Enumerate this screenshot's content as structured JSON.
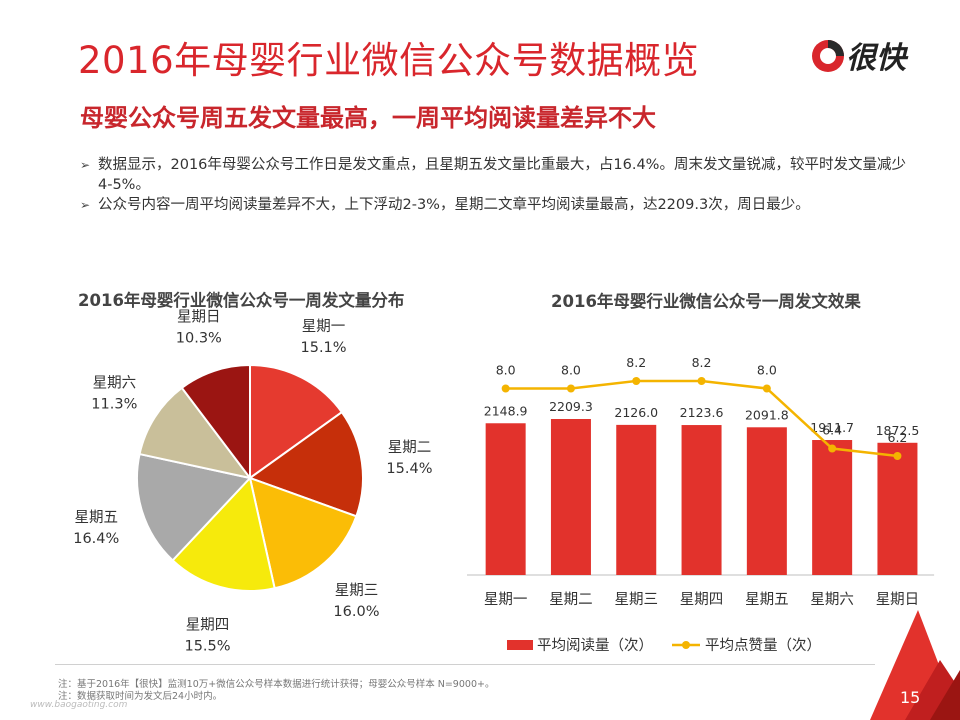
{
  "header": {
    "title": "2016年母婴行业微信公众号数据概览",
    "subtitle": "母婴公众号周五发文量最高，一周平均阅读量差异不大",
    "logo_text": "很快"
  },
  "bullets": [
    "数据显示，2016年母婴公众号工作日是发文重点，且星期五发文量比重最大，占16.4%。周末发文量锐减，较平时发文量减少4-5%。",
    "公众号内容一周平均阅读量差异不大，上下浮动2-3%，星期二文章平均阅读量最高，达2209.3次，周日最少。"
  ],
  "colors": {
    "title_red": "#d9262c",
    "bar": "#e2322c",
    "line": "#f4b400"
  },
  "chart_data": [
    {
      "type": "pie",
      "title": "2016年母婴行业微信公众号一周发文量分布",
      "slices": [
        {
          "label": "星期一",
          "value": 15.1,
          "display": "15.1%",
          "color": "#e53a2f"
        },
        {
          "label": "星期二",
          "value": 15.4,
          "display": "15.4%",
          "color": "#c62f0a"
        },
        {
          "label": "星期三",
          "value": 16.0,
          "display": "16.0%",
          "color": "#fbbd06"
        },
        {
          "label": "星期四",
          "value": 15.5,
          "display": "15.5%",
          "color": "#f6ea0c"
        },
        {
          "label": "星期五",
          "value": 16.4,
          "display": "16.4%",
          "color": "#a9a9a9"
        },
        {
          "label": "星期六",
          "value": 11.3,
          "display": "11.3%",
          "color": "#c9bf9a"
        },
        {
          "label": "星期日",
          "value": 10.3,
          "display": "10.3%",
          "color": "#9b1512"
        }
      ]
    },
    {
      "type": "bar",
      "title": "2016年母婴行业微信公众号一周发文效果",
      "categories": [
        "星期一",
        "星期二",
        "星期三",
        "星期四",
        "星期五",
        "星期六",
        "星期日"
      ],
      "series": [
        {
          "name": "平均阅读量（次）",
          "type": "bar",
          "values": [
            2148.9,
            2209.3,
            2126.0,
            2123.6,
            2091.8,
            1911.7,
            1872.5
          ],
          "labels": [
            "2148.9",
            "2209.3",
            "2126.0",
            "2123.6",
            "2091.8",
            "1911.7",
            "1872.5"
          ]
        },
        {
          "name": "平均点赞量（次）",
          "type": "line",
          "values": [
            8.0,
            8.0,
            8.2,
            8.2,
            8.0,
            6.4,
            6.2
          ],
          "labels": [
            "8.0",
            "8.0",
            "8.2",
            "8.2",
            "8.0",
            "6.4",
            "6.2"
          ]
        }
      ]
    }
  ],
  "footnotes": [
    "注：基于2016年【很快】监测10万+微信公众号样本数据进行统计获得；母婴公众号样本 N=9000+。",
    "注：数据获取时间为发文后24小时内。"
  ],
  "watermark": "www.baogaoting.com",
  "page_number": "15"
}
